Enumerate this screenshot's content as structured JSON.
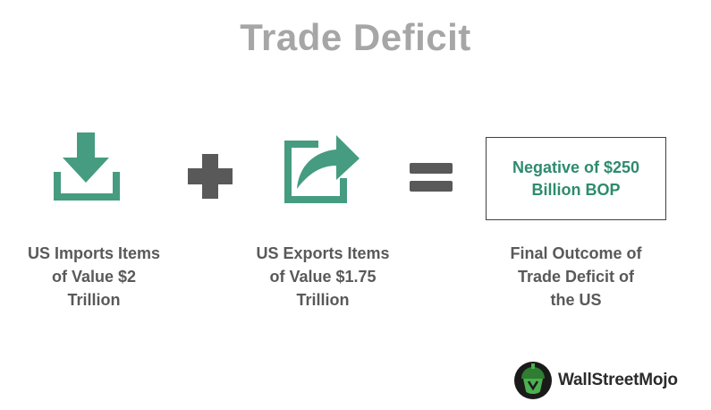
{
  "title": "Trade Deficit",
  "colors": {
    "accent_green": "#469c80",
    "operator_gray": "#595959",
    "title_gray": "#a6a6a6",
    "result_text": "#2e8b6e"
  },
  "imports": {
    "icon": "download-icon",
    "caption_lines": [
      "US Imports Items",
      "of Value $2",
      "Trillion"
    ]
  },
  "operator_plus": {
    "icon": "plus-icon"
  },
  "exports": {
    "icon": "share-arrow-icon",
    "caption_lines": [
      "US Exports Items",
      "of Value $1.75",
      "Trillion"
    ]
  },
  "operator_equals": {
    "icon": "equals-icon"
  },
  "result": {
    "box_lines": [
      "Negative of $250",
      "Billion BOP"
    ],
    "caption_lines": [
      "Final Outcome of",
      "Trade Deficit of",
      "the US"
    ]
  },
  "brand": {
    "name": "WallStreetMojo",
    "icon": "wallstreetmojo-logo-icon"
  }
}
